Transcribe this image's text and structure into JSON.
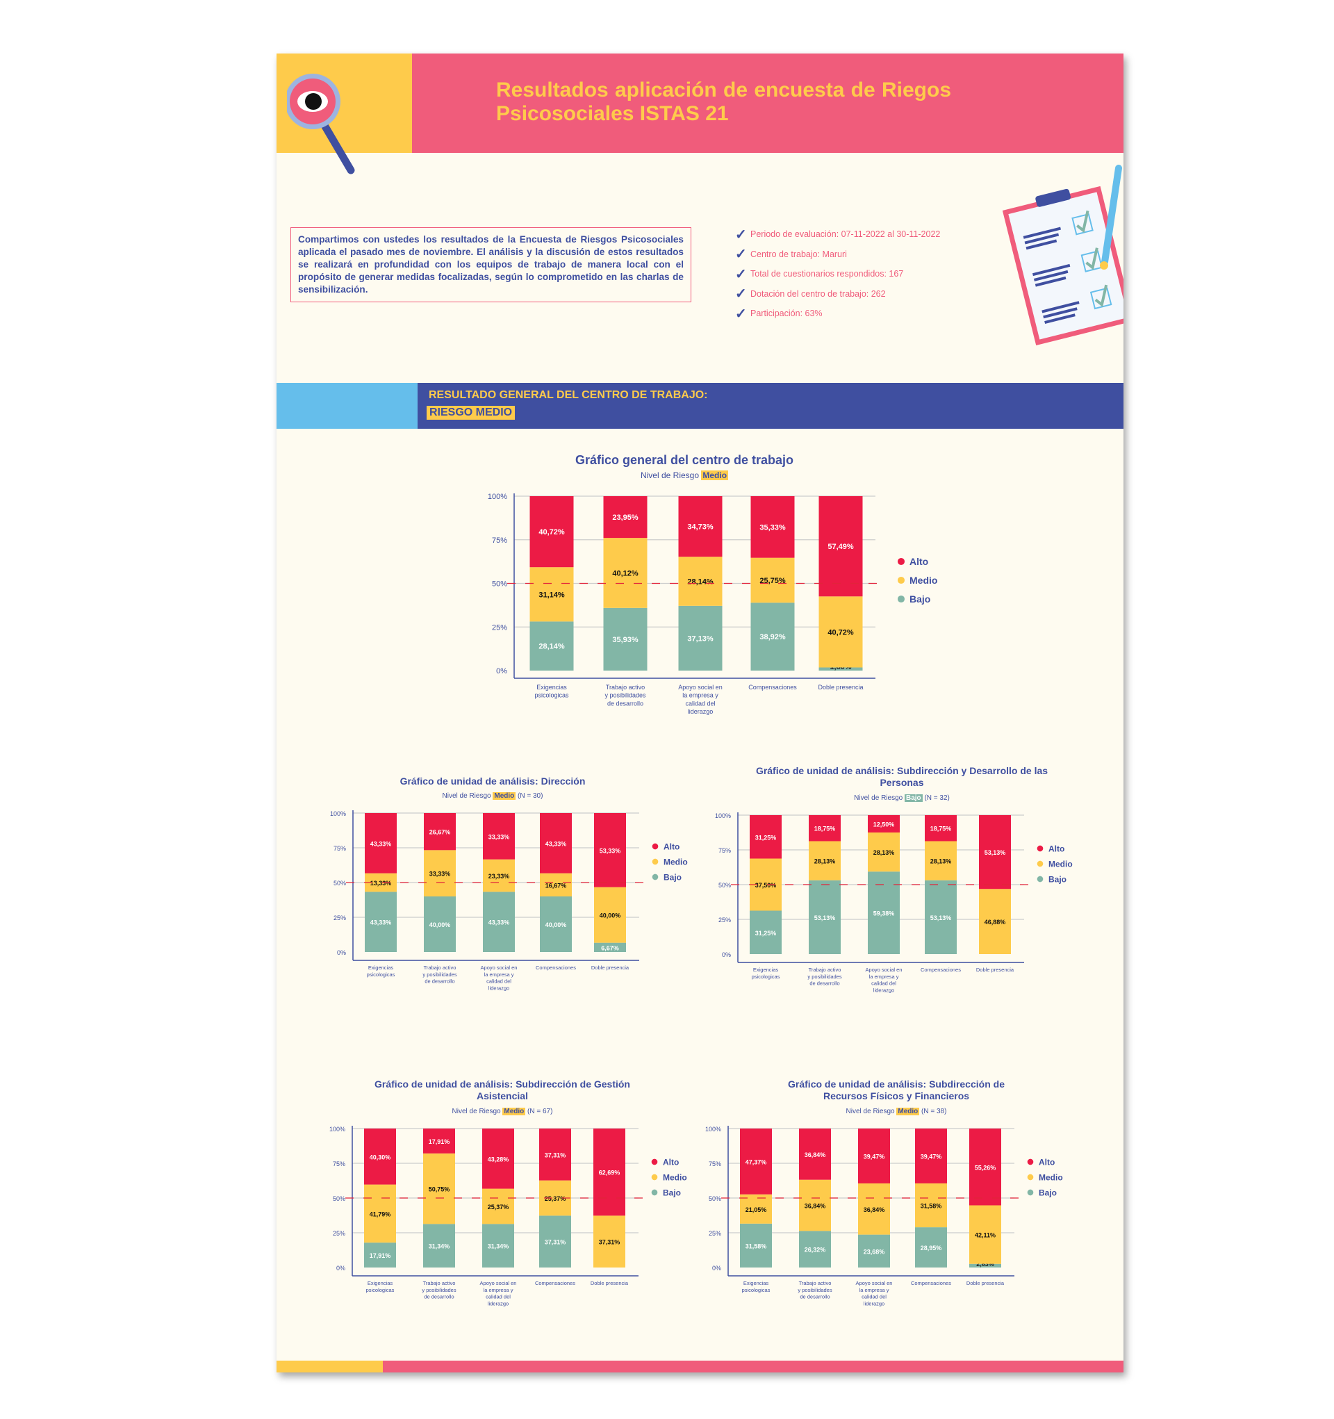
{
  "header": {
    "title": "Resultados aplicación de encuesta de Riegos Psicosociales ISTAS 21"
  },
  "intro": {
    "text": "Compartimos con ustedes los resultados de la Encuesta de Riesgos Psicosociales aplicada el pasado mes de noviembre. El análisis y la discusión de estos resultados se realizará en profundidad con los equipos de trabajo de manera local con el propósito de generar medidas focalizadas, según lo comprometido en las charlas de sensibilización."
  },
  "checklist": [
    "Periodo de evaluación: 07-11-2022 al 30-11-2022",
    "Centro de trabajo: Maruri",
    "Total de cuestionarios respondidos: 167",
    "Dotación del centro de trabajo: 262",
    "Participación: 63%"
  ],
  "banner": {
    "title": "RESULTADO GENERAL DEL CENTRO DE TRABAJO:",
    "result": "RIESGO MEDIO"
  },
  "colors": {
    "alto": "#EC1B45",
    "medio": "#FECB4B",
    "bajo": "#82B6A6",
    "navy": "#3F4FA0",
    "pink": "#F05C7B",
    "sky": "#65BEEB"
  },
  "chart_data": [
    {
      "type": "bar",
      "stacked": true,
      "title": "Gráfico general del centro de trabajo",
      "subtitle_prefix": "Nivel de Riesgo",
      "subtitle_level": "Medio",
      "subtitle_n": "",
      "categories": [
        "Exigencias\npsicologicas",
        "Trabajo activo\ny posibilidades\nde desarrollo",
        "Apoyo social en\nla empresa y\ncalidad del\nliderazgo",
        "Compensaciones",
        "Doble presencia"
      ],
      "series": [
        {
          "name": "Alto",
          "values": [
            40.72,
            23.95,
            34.73,
            35.33,
            57.49
          ]
        },
        {
          "name": "Medio",
          "values": [
            31.14,
            40.12,
            28.14,
            25.75,
            40.72
          ]
        },
        {
          "name": "Bajo",
          "values": [
            28.14,
            35.93,
            37.13,
            38.92,
            1.8
          ]
        }
      ],
      "ylim": [
        0,
        100
      ],
      "yticks": [
        0,
        25,
        50,
        75,
        100
      ],
      "reference_line": 50,
      "legend": "right",
      "grid": true
    },
    {
      "type": "bar",
      "stacked": true,
      "title": "Gráfico de unidad de análisis: Dirección",
      "subtitle_prefix": "Nivel de Riesgo",
      "subtitle_level": "Medio",
      "subtitle_n": "(N = 30)",
      "categories": [
        "Exigencias\npsicologicas",
        "Trabajo activo\ny posibilidades\nde desarrollo",
        "Apoyo social en\nla empresa y\ncalidad del\nliderazgo",
        "Compensaciones",
        "Doble presencia"
      ],
      "series": [
        {
          "name": "Alto",
          "values": [
            43.33,
            26.67,
            33.33,
            43.33,
            53.33
          ]
        },
        {
          "name": "Medio",
          "values": [
            13.33,
            33.33,
            23.33,
            16.67,
            40.0
          ]
        },
        {
          "name": "Bajo",
          "values": [
            43.33,
            40.0,
            43.33,
            40.0,
            6.67
          ]
        }
      ],
      "ylim": [
        0,
        100
      ],
      "yticks": [
        0,
        25,
        50,
        75,
        100
      ],
      "reference_line": 50,
      "legend": "right",
      "grid": true
    },
    {
      "type": "bar",
      "stacked": true,
      "title": "Gráfico de unidad de análisis: Subdirección y Desarrollo de las Personas",
      "subtitle_prefix": "Nivel de Riesgo",
      "subtitle_level": "Bajo",
      "subtitle_n": "(N = 32)",
      "categories": [
        "Exigencias\npsicologicas",
        "Trabajo activo\ny posibilidades\nde desarrollo",
        "Apoyo social en\nla empresa y\ncalidad del\nliderazgo",
        "Compensaciones",
        "Doble presencia"
      ],
      "series": [
        {
          "name": "Alto",
          "values": [
            31.25,
            18.75,
            12.5,
            18.75,
            53.13
          ]
        },
        {
          "name": "Medio",
          "values": [
            37.5,
            28.13,
            28.13,
            28.13,
            46.88
          ]
        },
        {
          "name": "Bajo",
          "values": [
            31.25,
            53.13,
            59.38,
            53.13,
            0
          ]
        }
      ],
      "ylim": [
        0,
        100
      ],
      "yticks": [
        0,
        25,
        50,
        75,
        100
      ],
      "reference_line": 50,
      "legend": "right",
      "grid": true
    },
    {
      "type": "bar",
      "stacked": true,
      "title": "Gráfico de unidad de análisis: Subdirección de Gestión Asistencial",
      "subtitle_prefix": "Nivel de Riesgo",
      "subtitle_level": "Medio",
      "subtitle_n": "(N = 67)",
      "categories": [
        "Exigencias\npsicologicas",
        "Trabajo activo\ny posibilidades\nde desarrollo",
        "Apoyo social en\nla empresa y\ncalidad del\nliderazgo",
        "Compensaciones",
        "Doble presencia"
      ],
      "series": [
        {
          "name": "Alto",
          "values": [
            40.3,
            17.91,
            43.28,
            37.31,
            62.69
          ]
        },
        {
          "name": "Medio",
          "values": [
            41.79,
            50.75,
            25.37,
            25.37,
            37.31
          ]
        },
        {
          "name": "Bajo",
          "values": [
            17.91,
            31.34,
            31.34,
            37.31,
            0
          ]
        }
      ],
      "ylim": [
        0,
        100
      ],
      "yticks": [
        0,
        25,
        50,
        75,
        100
      ],
      "reference_line": 50,
      "legend": "right",
      "grid": true
    },
    {
      "type": "bar",
      "stacked": true,
      "title": "Gráfico de unidad de análisis: Subdirección de Recursos Físicos y Financieros",
      "subtitle_prefix": "Nivel de Riesgo",
      "subtitle_level": "Medio",
      "subtitle_n": "(N = 38)",
      "categories": [
        "Exigencias\npsicologicas",
        "Trabajo activo\ny posibilidades\nde desarrollo",
        "Apoyo social en\nla empresa y\ncalidad del\nliderazgo",
        "Compensaciones",
        "Doble presencia"
      ],
      "series": [
        {
          "name": "Alto",
          "values": [
            47.37,
            36.84,
            39.47,
            39.47,
            55.26
          ]
        },
        {
          "name": "Medio",
          "values": [
            21.05,
            36.84,
            36.84,
            31.58,
            42.11
          ]
        },
        {
          "name": "Bajo",
          "values": [
            31.58,
            26.32,
            23.68,
            28.95,
            2.63
          ]
        }
      ],
      "ylim": [
        0,
        100
      ],
      "yticks": [
        0,
        25,
        50,
        75,
        100
      ],
      "reference_line": 50,
      "legend": "right",
      "grid": true
    }
  ]
}
